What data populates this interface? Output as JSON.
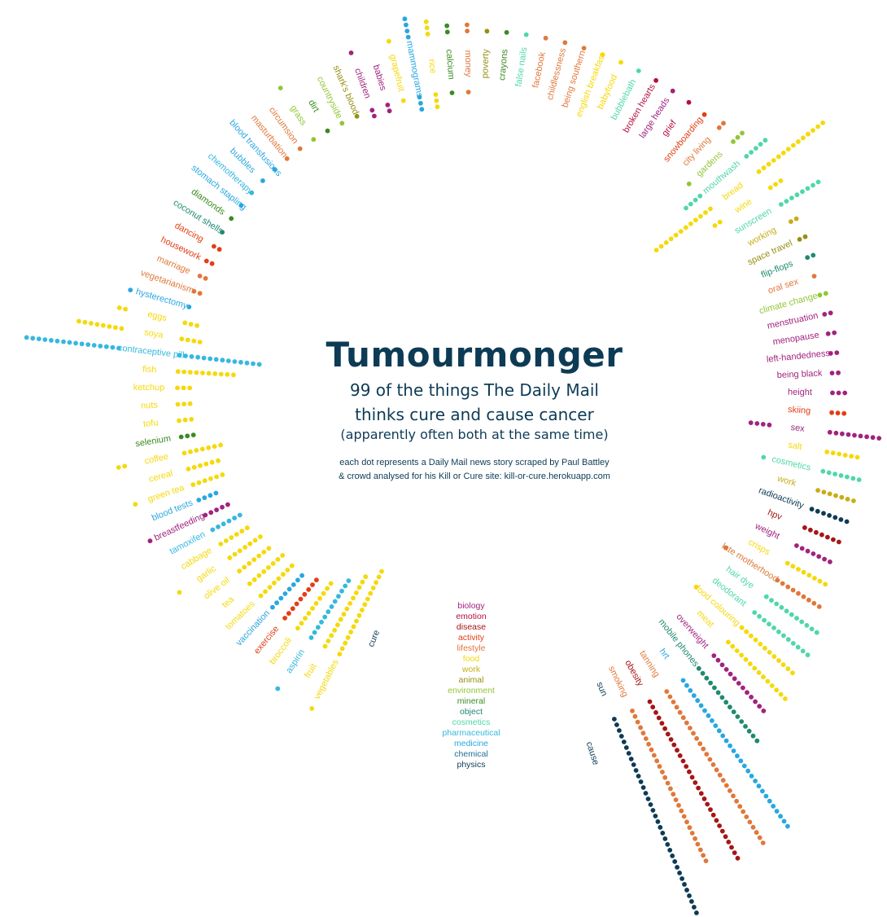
{
  "title": "Tumourmonger",
  "subtitle_line1": "99 of the things The Daily Mail",
  "subtitle_line2": "thinks cure and cause cancer",
  "subtitle_line3": "(apparently often both at the same time)",
  "note_line1": "each dot represents a Daily Mail news story scraped by Paul Battley",
  "note_line2": "& crowd analysed for his Kill or Cure site: kill-or-cure.herokuapp.com",
  "colors": {
    "biology": "#a1237e",
    "emotion": "#b5103f",
    "disease": "#a51616",
    "activity": "#e33e15",
    "lifestyle": "#e0783b",
    "food": "#f5d90a",
    "work": "#c8ad16",
    "animal": "#968f13",
    "environment": "#91c635",
    "mineral": "#3b8a23",
    "object": "#1f8a6f",
    "cosmetics": "#4fd8a6",
    "pharmaceutical": "#36b8de",
    "medicine": "#28a7e0",
    "chemical": "#1f6f96",
    "physics": "#0d3b55"
  },
  "legend": [
    {
      "label": "biology",
      "cat": "biology"
    },
    {
      "label": "emotion",
      "cat": "emotion"
    },
    {
      "label": "disease",
      "cat": "disease"
    },
    {
      "label": "activity",
      "cat": "activity"
    },
    {
      "label": "lifestyle",
      "cat": "lifestyle"
    },
    {
      "label": "food",
      "cat": "food"
    },
    {
      "label": "work",
      "cat": "work"
    },
    {
      "label": "animal",
      "cat": "animal"
    },
    {
      "label": "environment",
      "cat": "environment"
    },
    {
      "label": "mineral",
      "cat": "mineral"
    },
    {
      "label": "object",
      "cat": "object"
    },
    {
      "label": "cosmetics",
      "cat": "cosmetics"
    },
    {
      "label": "pharmaceutical",
      "cat": "pharmaceutical"
    },
    {
      "label": "medicine",
      "cat": "medicine"
    },
    {
      "label": "chemical",
      "cat": "chemical"
    },
    {
      "label": "physics",
      "cat": "physics"
    }
  ],
  "chart_data": {
    "type": "radial-dot",
    "title": "Tumourmonger",
    "cure_label": "cure",
    "cause_label": "cause",
    "series": [
      {
        "name": "cure",
        "values": "inner dot rows"
      },
      {
        "name": "cause",
        "values": "outer dot rows"
      }
    ],
    "items": [
      {
        "label": "vegetables",
        "cat": "food",
        "cure": 16,
        "cause": 1
      },
      {
        "label": "fruit",
        "cat": "food",
        "cure": 14,
        "cause": 0
      },
      {
        "label": "aspirin",
        "cat": "pharmaceutical",
        "cure": 12,
        "cause": 1
      },
      {
        "label": "broccoli",
        "cat": "food",
        "cure": 10,
        "cause": 0
      },
      {
        "label": "exercise",
        "cat": "activity",
        "cure": 9,
        "cause": 0
      },
      {
        "label": "vaccination",
        "cat": "medicine",
        "cure": 8,
        "cause": 0
      },
      {
        "label": "tomatoes",
        "cat": "food",
        "cure": 8,
        "cause": 0
      },
      {
        "label": "tea",
        "cat": "food",
        "cure": 8,
        "cause": 0
      },
      {
        "label": "olive oil",
        "cat": "food",
        "cure": 7,
        "cause": 0
      },
      {
        "label": "garlic",
        "cat": "food",
        "cure": 7,
        "cause": 1
      },
      {
        "label": "cabbage",
        "cat": "food",
        "cure": 6,
        "cause": 0
      },
      {
        "label": "tamoxifen",
        "cat": "pharmaceutical",
        "cure": 6,
        "cause": 0
      },
      {
        "label": "breastfeeding",
        "cat": "biology",
        "cure": 5,
        "cause": 1
      },
      {
        "label": "blood tests",
        "cat": "medicine",
        "cure": 4,
        "cause": 0
      },
      {
        "label": "green tea",
        "cat": "food",
        "cure": 6,
        "cause": 1
      },
      {
        "label": "cereal",
        "cat": "food",
        "cure": 6,
        "cause": 0
      },
      {
        "label": "coffee",
        "cat": "food",
        "cure": 7,
        "cause": 2
      },
      {
        "label": "selenium",
        "cat": "mineral",
        "cure": 3,
        "cause": 0
      },
      {
        "label": "tofu",
        "cat": "food",
        "cure": 3,
        "cause": 0
      },
      {
        "label": "nuts",
        "cat": "food",
        "cure": 3,
        "cause": 0
      },
      {
        "label": "ketchup",
        "cat": "food",
        "cure": 3,
        "cause": 0
      },
      {
        "label": "fish",
        "cat": "food",
        "cure": 10,
        "cause": 0
      },
      {
        "label": "contraceptive pill",
        "cat": "pharmaceutical",
        "cure": 14,
        "cause": 16
      },
      {
        "label": "soya",
        "cat": "food",
        "cure": 4,
        "cause": 8
      },
      {
        "label": "eggs",
        "cat": "food",
        "cure": 3,
        "cause": 2
      },
      {
        "label": "hysterectomy",
        "cat": "medicine",
        "cure": 1,
        "cause": 1
      },
      {
        "label": "vegetarianism",
        "cat": "lifestyle",
        "cure": 2,
        "cause": 0
      },
      {
        "label": "marriage",
        "cat": "lifestyle",
        "cure": 2,
        "cause": 0
      },
      {
        "label": "housework",
        "cat": "activity",
        "cure": 2,
        "cause": 0
      },
      {
        "label": "dancing",
        "cat": "activity",
        "cure": 2,
        "cause": 0
      },
      {
        "label": "coconut shells",
        "cat": "object",
        "cure": 1,
        "cause": 0
      },
      {
        "label": "diamonds",
        "cat": "mineral",
        "cure": 1,
        "cause": 0
      },
      {
        "label": "stomach stapling",
        "cat": "medicine",
        "cure": 1,
        "cause": 0
      },
      {
        "label": "chemotherapy",
        "cat": "pharmaceutical",
        "cure": 1,
        "cause": 0
      },
      {
        "label": "bubbles",
        "cat": "medicine",
        "cure": 1,
        "cause": 0
      },
      {
        "label": "blood transfusions",
        "cat": "medicine",
        "cure": 1,
        "cause": 0
      },
      {
        "label": "masturbation",
        "cat": "lifestyle",
        "cure": 1,
        "cause": 0
      },
      {
        "label": "circumsion",
        "cat": "lifestyle",
        "cure": 1,
        "cause": 0
      },
      {
        "label": "grass",
        "cat": "environment",
        "cure": 1,
        "cause": 1
      },
      {
        "label": "dirt",
        "cat": "mineral",
        "cure": 1,
        "cause": 0
      },
      {
        "label": "countryside",
        "cat": "environment",
        "cure": 1,
        "cause": 0
      },
      {
        "label": "shark's blood",
        "cat": "animal",
        "cure": 1,
        "cause": 0
      },
      {
        "label": "children",
        "cat": "biology",
        "cure": 2,
        "cause": 1
      },
      {
        "label": "babies",
        "cat": "biology",
        "cure": 2,
        "cause": 0
      },
      {
        "label": "grapefruit",
        "cat": "food",
        "cure": 1,
        "cause": 1
      },
      {
        "label": "mammograms",
        "cat": "medicine",
        "cure": 3,
        "cause": 4
      },
      {
        "label": "rice",
        "cat": "food",
        "cure": 3,
        "cause": 3
      },
      {
        "label": "calcium",
        "cat": "mineral",
        "cure": 1,
        "cause": 2
      },
      {
        "label": "money",
        "cat": "lifestyle",
        "cure": 1,
        "cause": 2
      },
      {
        "label": "poverty",
        "cat": "animal",
        "cure": 0,
        "cause": 1
      },
      {
        "label": "crayons",
        "cat": "mineral",
        "cure": 0,
        "cause": 1
      },
      {
        "label": "false nails",
        "cat": "cosmetics",
        "cure": 0,
        "cause": 1
      },
      {
        "label": "facebook",
        "cat": "lifestyle",
        "cure": 0,
        "cause": 1
      },
      {
        "label": "childlessness",
        "cat": "lifestyle",
        "cure": 0,
        "cause": 1
      },
      {
        "label": "being southern",
        "cat": "lifestyle",
        "cure": 0,
        "cause": 1
      },
      {
        "label": "english breakfast",
        "cat": "food",
        "cure": 0,
        "cause": 1
      },
      {
        "label": "babyfood",
        "cat": "food",
        "cure": 0,
        "cause": 1
      },
      {
        "label": "bubblebath",
        "cat": "cosmetics",
        "cure": 0,
        "cause": 1
      },
      {
        "label": "broken hearts",
        "cat": "emotion",
        "cure": 0,
        "cause": 1
      },
      {
        "label": "large heads",
        "cat": "biology",
        "cure": 0,
        "cause": 1
      },
      {
        "label": "grief",
        "cat": "emotion",
        "cure": 0,
        "cause": 1
      },
      {
        "label": "snowboarding",
        "cat": "activity",
        "cure": 0,
        "cause": 1
      },
      {
        "label": "city living",
        "cat": "lifestyle",
        "cure": 0,
        "cause": 2
      },
      {
        "label": "gardens",
        "cat": "environment",
        "cure": 1,
        "cause": 3
      },
      {
        "label": "mouthwash",
        "cat": "cosmetics",
        "cure": 4,
        "cause": 5
      },
      {
        "label": "bread",
        "cat": "food",
        "cure": 12,
        "cause": 14
      },
      {
        "label": "wine",
        "cat": "food",
        "cure": 2,
        "cause": 3
      },
      {
        "label": "sunscreen",
        "cat": "cosmetics",
        "cure": 0,
        "cause": 8
      },
      {
        "label": "working",
        "cat": "work",
        "cure": 0,
        "cause": 2
      },
      {
        "label": "space travel",
        "cat": "animal",
        "cure": 0,
        "cause": 2
      },
      {
        "label": "flip-flops",
        "cat": "object",
        "cure": 0,
        "cause": 2
      },
      {
        "label": "oral sex",
        "cat": "lifestyle",
        "cure": 0,
        "cause": 1
      },
      {
        "label": "climate change",
        "cat": "environment",
        "cure": 0,
        "cause": 2
      },
      {
        "label": "menstruation",
        "cat": "biology",
        "cure": 0,
        "cause": 2
      },
      {
        "label": "menopause",
        "cat": "biology",
        "cure": 0,
        "cause": 2
      },
      {
        "label": "left-handedness",
        "cat": "biology",
        "cure": 0,
        "cause": 2
      },
      {
        "label": "being black",
        "cat": "biology",
        "cure": 0,
        "cause": 2
      },
      {
        "label": "height",
        "cat": "biology",
        "cure": 0,
        "cause": 3
      },
      {
        "label": "skiing",
        "cat": "activity",
        "cure": 0,
        "cause": 3
      },
      {
        "label": "sex",
        "cat": "biology",
        "cure": 4,
        "cause": 9
      },
      {
        "label": "salt",
        "cat": "food",
        "cure": 0,
        "cause": 6
      },
      {
        "label": "cosmetics",
        "cat": "cosmetics",
        "cure": 1,
        "cause": 7
      },
      {
        "label": "work",
        "cat": "work",
        "cure": 0,
        "cause": 7
      },
      {
        "label": "radioactivity",
        "cat": "physics",
        "cure": 0,
        "cause": 7
      },
      {
        "label": "hpv",
        "cat": "disease",
        "cure": 0,
        "cause": 7
      },
      {
        "label": "weight",
        "cat": "biology",
        "cure": 0,
        "cause": 7
      },
      {
        "label": "crisps",
        "cat": "food",
        "cure": 0,
        "cause": 8
      },
      {
        "label": "late motherhood",
        "cat": "lifestyle",
        "cure": 1,
        "cause": 9
      },
      {
        "label": "hair dye",
        "cat": "cosmetics",
        "cure": 0,
        "cause": 11
      },
      {
        "label": "deodorant",
        "cat": "cosmetics",
        "cure": 0,
        "cause": 12
      },
      {
        "label": "food colouring",
        "cat": "food",
        "cure": 1,
        "cause": 12
      },
      {
        "label": "meat",
        "cat": "food",
        "cure": 0,
        "cause": 14
      },
      {
        "label": "overweight",
        "cat": "biology",
        "cure": 0,
        "cause": 13
      },
      {
        "label": "mobile phones",
        "cat": "object",
        "cure": 0,
        "cause": 16
      },
      {
        "label": "hrt",
        "cat": "medicine",
        "cure": 0,
        "cause": 30
      },
      {
        "label": "tanning",
        "cat": "lifestyle",
        "cure": 0,
        "cause": 30
      },
      {
        "label": "obesity",
        "cat": "disease",
        "cure": 0,
        "cause": 30
      },
      {
        "label": "smoking",
        "cat": "lifestyle",
        "cure": 0,
        "cause": 28
      },
      {
        "label": "sun",
        "cat": "physics",
        "cure": 0,
        "cause": 35
      }
    ]
  }
}
